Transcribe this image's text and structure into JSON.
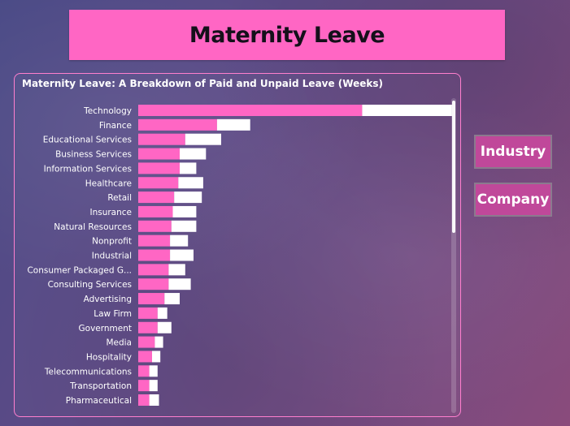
{
  "title": "Maternity Leave",
  "buttons": {
    "industry": "Industry",
    "company": "Company"
  },
  "colors": {
    "paid": "#ff66c4",
    "unpaid": "#ffffff",
    "banner": "#ff66c4",
    "button": "#c0489a"
  },
  "chart_data": {
    "type": "bar",
    "orientation": "horizontal",
    "stacked": true,
    "title": "Maternity Leave: A Breakdown of Paid and Unpaid Leave (Weeks)",
    "xlabel": "",
    "ylabel": "",
    "xlim": [
      0,
      22
    ],
    "grid": false,
    "categories": [
      "Technology",
      "Finance",
      "Educational Services",
      "Business Services",
      "Information Services",
      "Healthcare",
      "Retail",
      "Insurance",
      "Natural Resources",
      "Nonprofit",
      "Industrial",
      "Consumer Packaged G...",
      "Consulting Services",
      "Advertising",
      "Law Firm",
      "Government",
      "Media",
      "Hospitality",
      "Telecommunications",
      "Transportation",
      "Pharmaceutical"
    ],
    "series": [
      {
        "values": [
          16.2,
          5.7,
          3.4,
          3.0,
          3.0,
          2.9,
          2.6,
          2.5,
          2.4,
          2.3,
          2.3,
          2.2,
          2.2,
          1.9,
          1.4,
          1.4,
          1.2,
          1.0,
          0.8,
          0.8,
          0.8
        ]
      },
      {
        "values": [
          6.5,
          2.4,
          2.6,
          1.9,
          1.2,
          1.8,
          2.0,
          1.7,
          1.8,
          1.3,
          1.7,
          1.2,
          1.6,
          1.1,
          0.7,
          1.0,
          0.6,
          0.6,
          0.6,
          0.6,
          0.7
        ]
      }
    ]
  }
}
